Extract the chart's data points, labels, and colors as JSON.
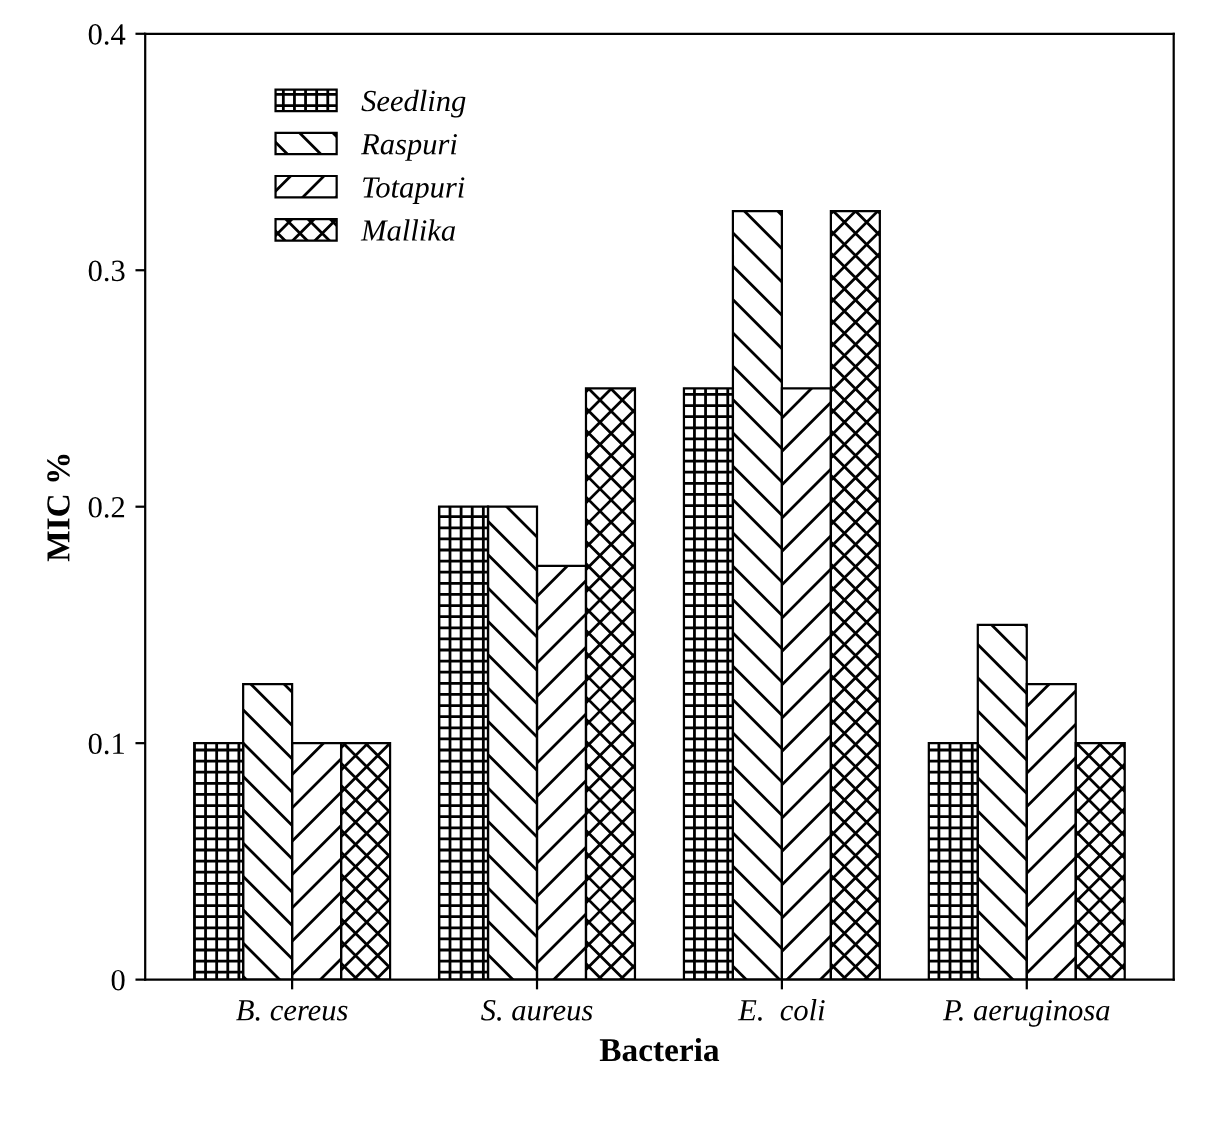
{
  "chart_data": {
    "type": "bar",
    "xlabel": "Bacteria",
    "ylabel": "MIC %",
    "categories": [
      "B. cereus",
      "S. aureus",
      "E.  coli",
      "P. aeruginosa"
    ],
    "series": [
      {
        "name": "Seedling",
        "color": "#000000",
        "values": [
          0.1,
          0.2,
          0.25,
          0.1
        ]
      },
      {
        "name": "Raspuri",
        "color": "#000000",
        "values": [
          0.125,
          0.2,
          0.325,
          0.15
        ]
      },
      {
        "name": "Totapuri",
        "color": "#000000",
        "values": [
          0.1,
          0.175,
          0.25,
          0.125
        ]
      },
      {
        "name": "Mallika",
        "color": "#000000",
        "values": [
          0.1,
          0.25,
          0.325,
          0.1
        ]
      }
    ],
    "ylim": [
      0,
      0.4
    ],
    "yticks": [
      0,
      0.1,
      0.2,
      0.3,
      0.4
    ],
    "grid": false,
    "legend": "top left"
  }
}
